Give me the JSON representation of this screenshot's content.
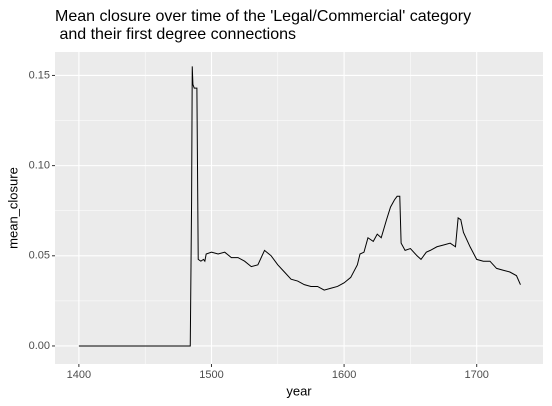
{
  "chart_data": {
    "type": "line",
    "title": [
      "Mean closure over time of the 'Legal/Commercial' category",
      " and their first degree connections"
    ],
    "x_label": "year",
    "y_label": "mean_closure",
    "x": [
      1400,
      1484,
      1485,
      1485.5,
      1486,
      1487,
      1489,
      1490,
      1492,
      1494,
      1495,
      1496,
      1500,
      1505,
      1510,
      1515,
      1520,
      1525,
      1530,
      1535,
      1540,
      1545,
      1550,
      1555,
      1560,
      1565,
      1570,
      1575,
      1580,
      1585,
      1590,
      1595,
      1600,
      1605,
      1610,
      1612,
      1615,
      1618,
      1622,
      1625,
      1628,
      1632,
      1635,
      1638,
      1640,
      1642,
      1643,
      1646,
      1650,
      1655,
      1658,
      1662,
      1665,
      1670,
      1675,
      1680,
      1684,
      1686,
      1688,
      1690,
      1695,
      1700,
      1705,
      1710,
      1715,
      1720,
      1725,
      1730,
      1733
    ],
    "series": [
      {
        "name": "mean_closure",
        "color": "#000000",
        "values": [
          0,
          0,
          0.08,
          0.155,
          0.145,
          0.143,
          0.143,
          0.048,
          0.047,
          0.048,
          0.047,
          0.051,
          0.052,
          0.051,
          0.052,
          0.049,
          0.049,
          0.047,
          0.044,
          0.045,
          0.053,
          0.05,
          0.045,
          0.041,
          0.037,
          0.036,
          0.034,
          0.033,
          0.033,
          0.031,
          0.032,
          0.033,
          0.035,
          0.038,
          0.045,
          0.051,
          0.052,
          0.06,
          0.058,
          0.062,
          0.06,
          0.07,
          0.077,
          0.081,
          0.083,
          0.083,
          0.057,
          0.053,
          0.054,
          0.05,
          0.048,
          0.052,
          0.053,
          0.055,
          0.056,
          0.057,
          0.055,
          0.071,
          0.07,
          0.063,
          0.055,
          0.048,
          0.047,
          0.047,
          0.043,
          0.042,
          0.041,
          0.039,
          0.034
        ]
      }
    ],
    "xlim": [
      1382,
      1750
    ],
    "ylim": [
      -0.01,
      0.163
    ],
    "xticks": [
      1400,
      1500,
      1600,
      1700
    ],
    "yticks": [
      {
        "value": 0,
        "label": "0.00"
      },
      {
        "value": 0.05,
        "label": "0.05"
      },
      {
        "value": 0.1,
        "label": "0.10"
      },
      {
        "value": 0.15,
        "label": "0.15"
      }
    ],
    "x_minor_breaks": [
      1450,
      1550,
      1650
    ],
    "y_minor_breaks": [
      0.025,
      0.075,
      0.125
    ],
    "grid": true,
    "panel_color": "#EBEBEB"
  }
}
